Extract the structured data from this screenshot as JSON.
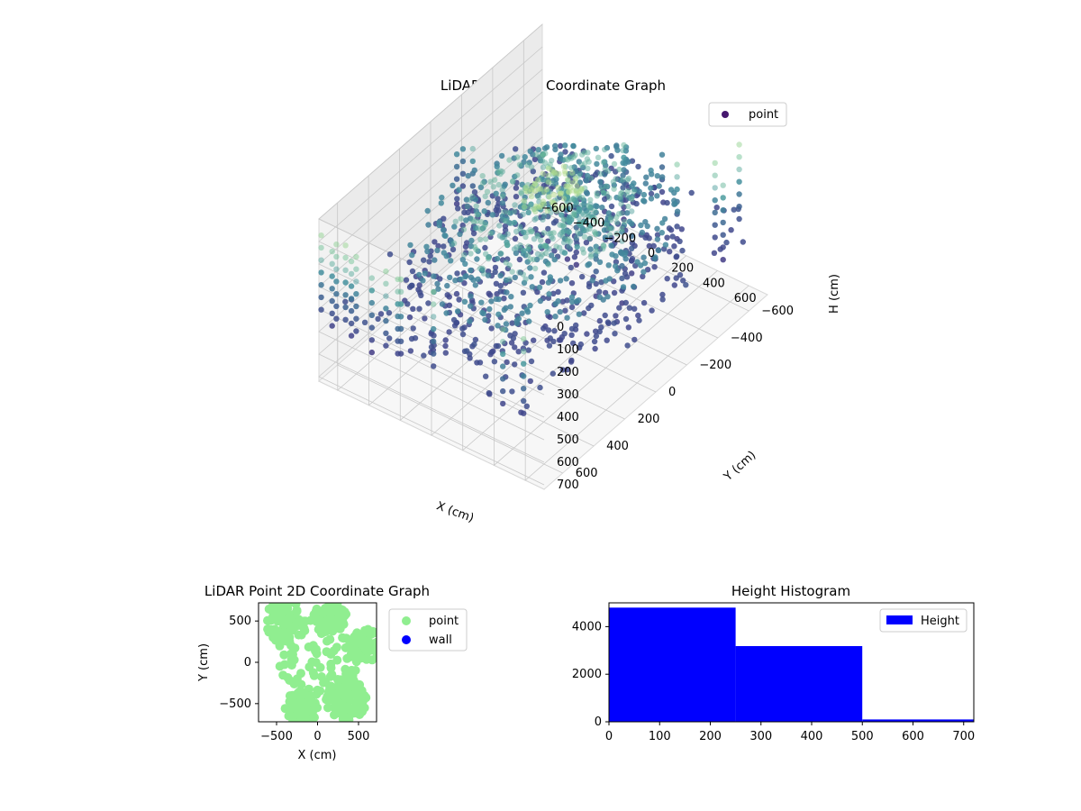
{
  "chart_data": [
    {
      "type": "scatter3d",
      "title": "LiDAR Point 3D Coordinate Graph",
      "xlabel": "X (cm)",
      "ylabel": "Y (cm)",
      "zlabel": "H (cm)",
      "xlim": [
        -720,
        720
      ],
      "ylim": [
        -720,
        720
      ],
      "zlim": [
        0,
        720
      ],
      "z_axis_inverted": true,
      "x_ticks": [
        "−600",
        "−400",
        "−200",
        "0",
        "200",
        "400",
        "600"
      ],
      "y_ticks": [
        "−600",
        "−400",
        "−200",
        "0",
        "200",
        "400",
        "600"
      ],
      "z_ticks": [
        "0",
        "100",
        "200",
        "300",
        "400",
        "500",
        "600",
        "700"
      ],
      "grid": true,
      "colormap": "viridis",
      "legend": {
        "position": "top-right",
        "entries": [
          {
            "label": "point",
            "color": "#46186e"
          }
        ]
      },
      "series": [
        {
          "name": "point",
          "description_rings": [
            {
              "h": 10,
              "cx": 80,
              "cy": 20,
              "r": 140
            },
            {
              "h": 150,
              "cx": 0,
              "cy": 0,
              "r": 420
            },
            {
              "h": 180,
              "cx": 40,
              "cy": 20,
              "r": 220
            },
            {
              "h": 240,
              "cx": 0,
              "cy": 0,
              "r": 620
            },
            {
              "h": 400,
              "cx": 0,
              "cy": 0,
              "r": 660
            }
          ]
        }
      ]
    },
    {
      "type": "scatter",
      "title": "LiDAR Point 2D Coordinate Graph",
      "xlabel": "X (cm)",
      "ylabel": "Y (cm)",
      "xlim": [
        -720,
        720
      ],
      "ylim": [
        -720,
        720
      ],
      "x_ticks": [
        "−500",
        "0",
        "500"
      ],
      "y_ticks": [
        "−500",
        "0",
        "500"
      ],
      "legend": {
        "position": "outside-right",
        "entries": [
          {
            "label": "point",
            "color": "#90ee90"
          },
          {
            "label": "wall",
            "color": "#0000ff"
          }
        ]
      }
    },
    {
      "type": "bar",
      "title": "Height Histogram",
      "xlabel": "",
      "ylabel": "",
      "bins": [
        {
          "from": 0,
          "to": 250,
          "count": 4800
        },
        {
          "from": 250,
          "to": 500,
          "count": 3180
        },
        {
          "from": 500,
          "to": 720,
          "count": 100
        }
      ],
      "xlim": [
        0,
        720
      ],
      "ylim": [
        0,
        5000
      ],
      "x_ticks": [
        "0",
        "100",
        "200",
        "300",
        "400",
        "500",
        "600",
        "700"
      ],
      "y_ticks": [
        "0",
        "2000",
        "4000"
      ],
      "color": "#0000ff",
      "legend": {
        "position": "top-right",
        "entries": [
          {
            "label": "Height",
            "color": "#0000ff"
          }
        ]
      }
    }
  ]
}
